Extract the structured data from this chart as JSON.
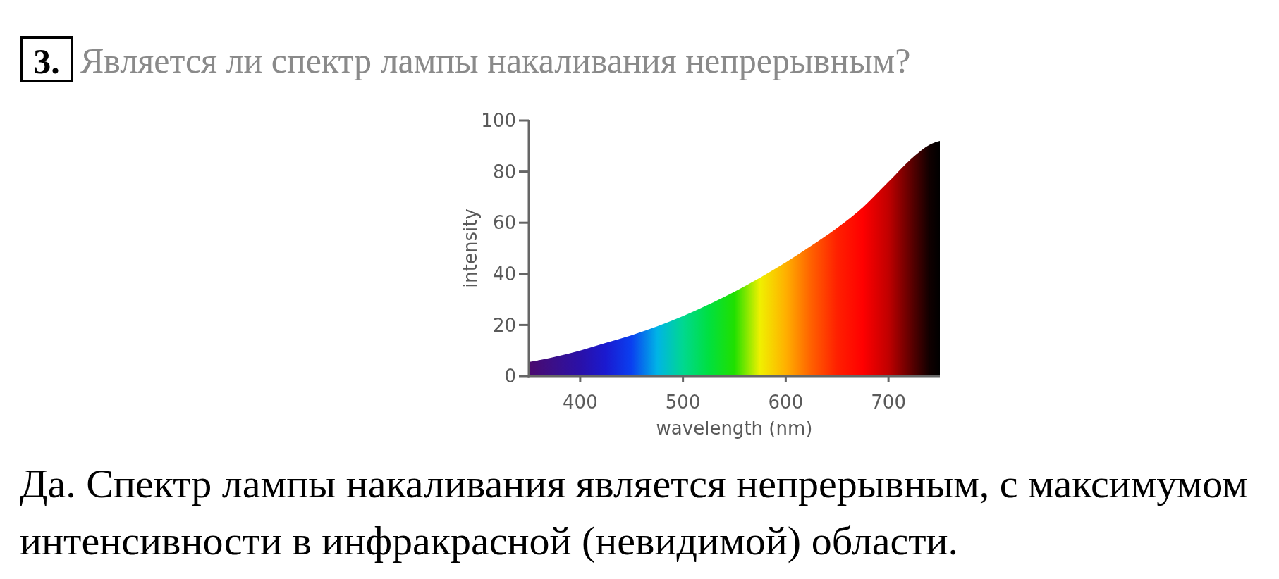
{
  "chart_data": {
    "type": "area",
    "title": "Является ли спектр лампы накаливания непрерывным?",
    "xlabel": "wavelength (nm)",
    "ylabel": "intensity",
    "annotations": [
      "3.",
      "Да. Спектр лампы накаливания является непрерывным, с максимумом интенсивности в инфракрасной (невидимой) области."
    ],
    "x": [
      350,
      375,
      400,
      425,
      450,
      475,
      500,
      525,
      550,
      575,
      600,
      625,
      650,
      675,
      700,
      725,
      740,
      750
    ],
    "series": [
      {
        "colors": [
          "#4b0a6e",
          "#3a0f8a",
          "#2a10a8",
          "#1a1ad0",
          "#0a40f0",
          "#00b4e6",
          "#00d890",
          "#00e040",
          "#20e000",
          "#f0f000",
          "#ffb000",
          "#ff6000",
          "#ff2000",
          "#ff0000",
          "#c00000",
          "#500000",
          "#100000",
          "#000000"
        ],
        "values": [
          5.5,
          7.5,
          10,
          13,
          16,
          19.5,
          23.5,
          28,
          33,
          38.5,
          44.5,
          51,
          58,
          66,
          76,
          86,
          90.5,
          92
        ]
      }
    ],
    "xlim": [
      350,
      750
    ],
    "ylim": [
      0,
      100
    ],
    "xticks": [
      400,
      500,
      600,
      700
    ],
    "yticks": [
      0,
      20,
      40,
      60,
      80,
      100
    ]
  }
}
